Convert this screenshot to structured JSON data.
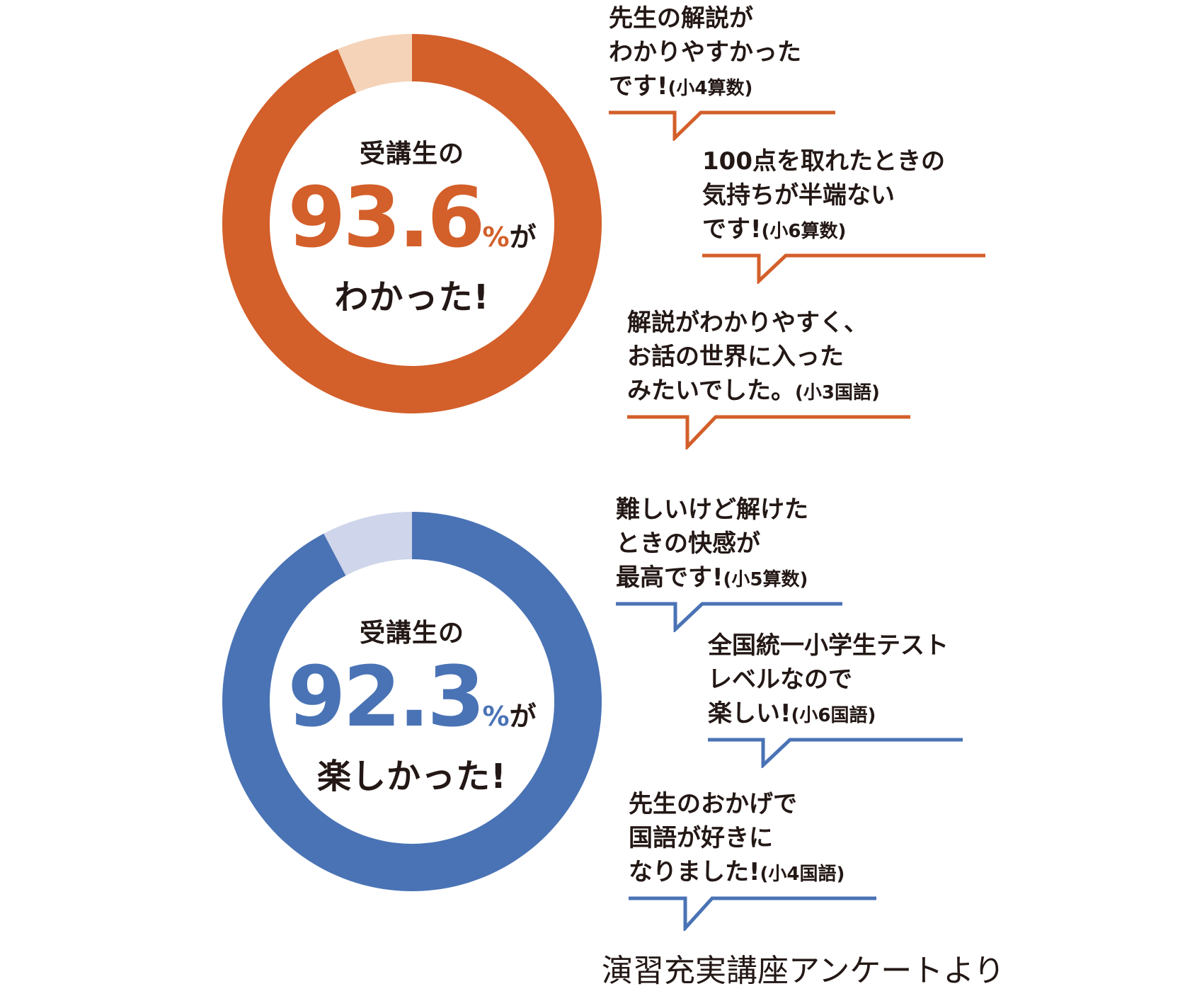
{
  "chart_data": [
    {
      "type": "pie",
      "values": [
        93.6,
        6.4
      ],
      "colors": [
        "#d35f2a",
        "#f5d3b8"
      ],
      "center": {
        "lead": "受講生の",
        "value": "93.6",
        "unit": "%",
        "suffix": "が",
        "tail": "わかった!"
      },
      "accent": "#d35f2a"
    },
    {
      "type": "pie",
      "values": [
        92.3,
        7.7
      ],
      "colors": [
        "#4a73b5",
        "#cfd5ea"
      ],
      "center": {
        "lead": "受講生の",
        "value": "92.3",
        "unit": "%",
        "suffix": "が",
        "tail": "楽しかった!"
      },
      "accent": "#4a73b5"
    }
  ],
  "comments_top": [
    {
      "lines": [
        "先生の解説が",
        "わかりやすかった",
        "です!"
      ],
      "tag": "(小4算数)"
    },
    {
      "lines": [
        "100点を取れたときの",
        "気持ちが半端ない",
        "です!"
      ],
      "tag": "(小6算数)"
    },
    {
      "lines": [
        "解説がわかりやすく、",
        "お話の世界に入った",
        "みたいでした。"
      ],
      "tag": "(小3国語)"
    }
  ],
  "comments_bottom": [
    {
      "lines": [
        "難しいけど解けた",
        "ときの快感が",
        "最高です!"
      ],
      "tag": "(小5算数)"
    },
    {
      "lines": [
        "全国統一小学生テスト",
        "レベルなので",
        "楽しい!"
      ],
      "tag": "(小6国語)"
    },
    {
      "lines": [
        "先生のおかげで",
        "国語が好きに",
        "なりました!"
      ],
      "tag": "(小4国語)"
    }
  ],
  "source": "演習充実講座アンケートより"
}
